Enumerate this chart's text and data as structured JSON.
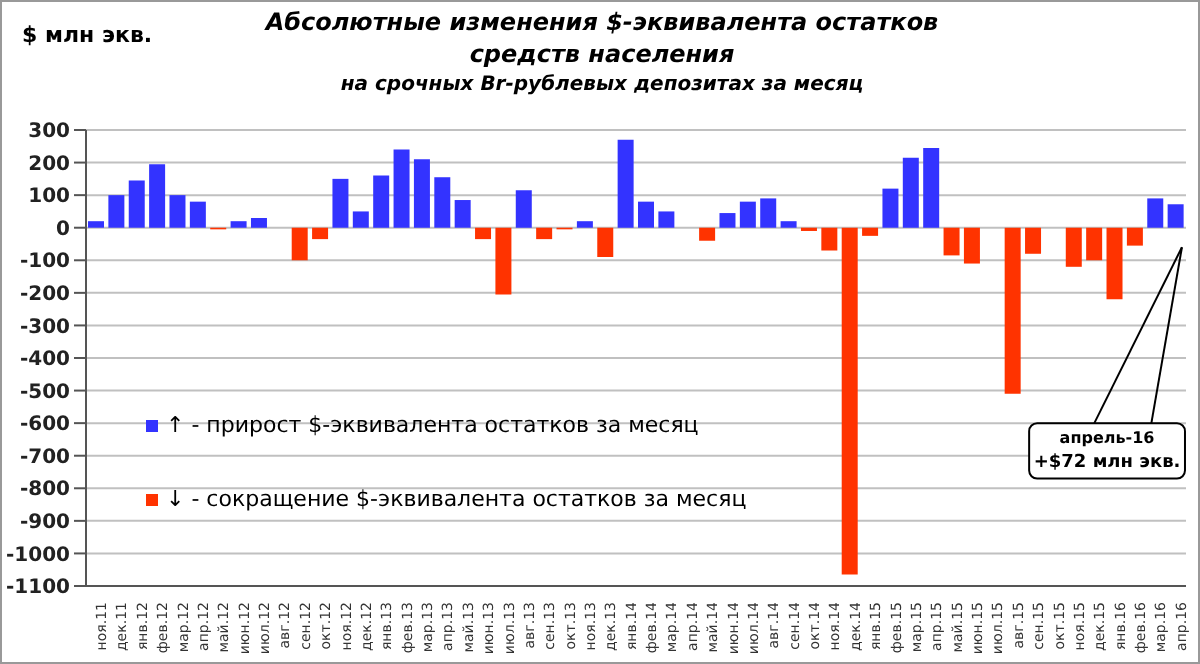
{
  "chart_data": {
    "type": "bar",
    "title": "Абсолютные изменения $-эквивалента остатков средств населения",
    "subtitle": "на срочных Br-рублевых  депозитах за месяц",
    "ylabel": "$ млн экв.",
    "categories": [
      "ноя.11",
      "дек.11",
      "янв.12",
      "фев.12",
      "мар.12",
      "апр.12",
      "май.12",
      "июн.12",
      "июл.12",
      "авг.12",
      "сен.12",
      "окт.12",
      "ноя.12",
      "дек.12",
      "янв.13",
      "фев.13",
      "мар.13",
      "апр.13",
      "май.13",
      "июн.13",
      "июл.13",
      "авг.13",
      "сен.13",
      "окт.13",
      "ноя.13",
      "дек.13",
      "янв.14",
      "фев.14",
      "мар.14",
      "апр.14",
      "май.14",
      "июн.14",
      "июл.14",
      "авг.14",
      "сен.14",
      "окт.14",
      "ноя.14",
      "дек.14",
      "янв.15",
      "фев.15",
      "мар.15",
      "апр.15",
      "май.15",
      "июн.15",
      "июл.15",
      "авг.15",
      "сен.15",
      "окт.15",
      "ноя.15",
      "дек.15",
      "янв.16",
      "фев.16",
      "мар.16",
      "апр.16"
    ],
    "stacked": true,
    "series": [
      {
        "name": "↑ - прирост  $-эквивалента остатков за месяц",
        "color": "#3333ff",
        "values": [
          20,
          100,
          145,
          195,
          100,
          80,
          null,
          20,
          30,
          0,
          null,
          null,
          150,
          50,
          160,
          240,
          210,
          155,
          85,
          null,
          null,
          115,
          null,
          null,
          20,
          null,
          270,
          80,
          50,
          0,
          null,
          45,
          80,
          90,
          20,
          null,
          null,
          null,
          null,
          120,
          215,
          245,
          null,
          null,
          0,
          null,
          null,
          0,
          null,
          null,
          null,
          null,
          90,
          72
        ]
      },
      {
        "name": "↓ - сокращение $-эквивалента остатков за месяц",
        "color": "#ff3300",
        "values": [
          null,
          null,
          null,
          null,
          null,
          null,
          -5,
          null,
          null,
          null,
          -100,
          -35,
          null,
          null,
          null,
          null,
          null,
          null,
          null,
          -35,
          -205,
          null,
          -35,
          -5,
          null,
          -90,
          null,
          null,
          null,
          null,
          -40,
          null,
          null,
          null,
          null,
          -10,
          -70,
          -1065,
          -25,
          null,
          null,
          null,
          -85,
          -110,
          null,
          -510,
          -80,
          null,
          -120,
          -100,
          -220,
          -55,
          null,
          null
        ]
      }
    ],
    "ylim": [
      -1100,
      300
    ],
    "yticks": [
      300,
      200,
      100,
      0,
      -100,
      -200,
      -300,
      -400,
      -500,
      -600,
      -700,
      -800,
      -900,
      -1000,
      -1100
    ],
    "grid": "y",
    "legend": "left",
    "annotations": [
      "апрель-16\n+$72 млн экв."
    ]
  }
}
